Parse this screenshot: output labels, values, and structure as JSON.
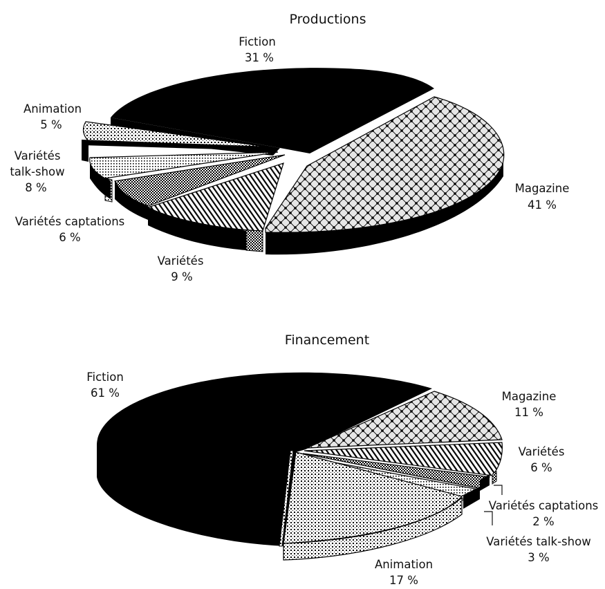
{
  "chart_data": [
    {
      "type": "pie",
      "title": "Productions",
      "slices": [
        {
          "name": "Fiction",
          "label": "31 %",
          "value": 31,
          "pattern": "solid"
        },
        {
          "name": "Magazine",
          "label": "41 %",
          "value": 41,
          "pattern": "diamond"
        },
        {
          "name": "Variétés",
          "label": "9 %",
          "value": 9,
          "pattern": "diagonal"
        },
        {
          "name": "Variétés captations",
          "label": "6 %",
          "value": 6,
          "pattern": "checker"
        },
        {
          "name": "Variétés talk-show",
          "label": "8 %",
          "value": 8,
          "pattern": "dots"
        },
        {
          "name": "Animation",
          "label": "5 %",
          "value": 5,
          "pattern": "grid"
        }
      ],
      "labels": {
        "fiction_line1": "Fiction",
        "fiction_line2": "31 %",
        "animation_line1": "Animation",
        "animation_line2": "5 %",
        "talk_line1": "Variétés",
        "talk_line2": "talk-show",
        "talk_line3": "8 %",
        "capt_line1": "Variétés captations",
        "capt_line2": "6 %",
        "var_line1": "Variétés",
        "var_line2": "9 %",
        "mag_line1": "Magazine",
        "mag_line2": "41 %"
      }
    },
    {
      "type": "pie",
      "title": "Financement",
      "slices": [
        {
          "name": "Fiction",
          "label": "61 %",
          "value": 61,
          "pattern": "solid"
        },
        {
          "name": "Magazine",
          "label": "11 %",
          "value": 11,
          "pattern": "diamond"
        },
        {
          "name": "Variétés",
          "label": "6 %",
          "value": 6,
          "pattern": "diagonal"
        },
        {
          "name": "Variétés captations",
          "label": "2 %",
          "value": 2,
          "pattern": "checker"
        },
        {
          "name": "Variétés talk-show",
          "label": "3 %",
          "value": 3,
          "pattern": "dots"
        },
        {
          "name": "Animation",
          "label": "17 %",
          "value": 17,
          "pattern": "grid"
        }
      ],
      "labels": {
        "fiction_line1": "Fiction",
        "fiction_line2": "61 %",
        "mag_line1": "Magazine",
        "mag_line2": "11 %",
        "var_line1": "Variétés",
        "var_line2": "6 %",
        "capt_line1": "Variétés captations",
        "capt_line2": "2 %",
        "talk_line1": "Variétés talk-show",
        "talk_line2": "3 %",
        "anim_line1": "Animation",
        "anim_line2": "17 %"
      }
    }
  ]
}
